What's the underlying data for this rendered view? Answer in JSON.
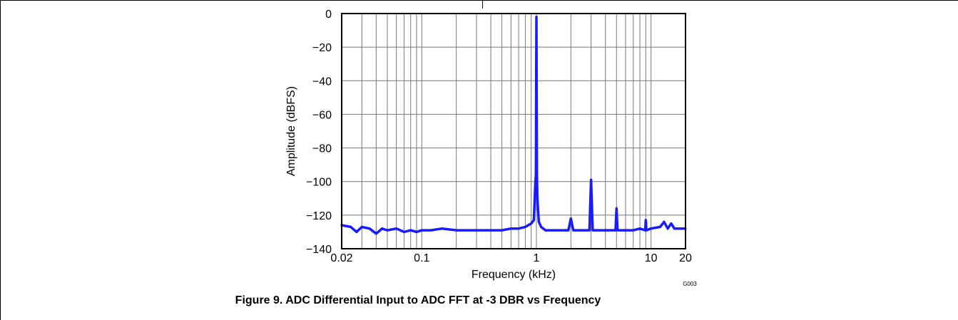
{
  "chart_data": {
    "type": "line",
    "title": "",
    "caption": "Figure 9. ADC Differential Input to ADC FFT at -3 DBR vs Frequency",
    "figure_code": "G003",
    "xlabel": "Frequency (kHz)",
    "ylabel": "Amplitude (dBFS)",
    "x_scale": "log",
    "xlim": [
      0.02,
      20
    ],
    "ylim": [
      -140,
      0
    ],
    "grid": true,
    "x_ticks": [
      {
        "value": 0.02,
        "label": "0.02"
      },
      {
        "value": 0.1,
        "label": "0.1"
      },
      {
        "value": 1,
        "label": "1"
      },
      {
        "value": 10,
        "label": "10"
      },
      {
        "value": 20,
        "label": "20"
      }
    ],
    "y_ticks": [
      {
        "value": 0,
        "label": "0"
      },
      {
        "value": -20,
        "label": "−20"
      },
      {
        "value": -40,
        "label": "−40"
      },
      {
        "value": -60,
        "label": "−60"
      },
      {
        "value": -80,
        "label": "−80"
      },
      {
        "value": -100,
        "label": "−100"
      },
      {
        "value": -120,
        "label": "−120"
      },
      {
        "value": -140,
        "label": "−140"
      }
    ],
    "line_color": "#1a1aff",
    "series": [
      {
        "name": "",
        "x": [
          0.02,
          0.024,
          0.027,
          0.03,
          0.035,
          0.04,
          0.045,
          0.05,
          0.06,
          0.07,
          0.08,
          0.09,
          0.1,
          0.12,
          0.15,
          0.2,
          0.3,
          0.4,
          0.5,
          0.6,
          0.7,
          0.8,
          0.9,
          0.95,
          0.98,
          0.99,
          1.0,
          1.01,
          1.02,
          1.05,
          1.1,
          1.2,
          1.5,
          1.9,
          2.0,
          2.1,
          2.5,
          2.9,
          3.0,
          3.1,
          4.0,
          4.9,
          5.0,
          5.1,
          6.0,
          7.0,
          8.0,
          8.9,
          9.0,
          9.1,
          10.0,
          12.0,
          13.0,
          14.0,
          15.0,
          16.0,
          18.0,
          20.0
        ],
        "values": [
          -126,
          -127,
          -130,
          -127,
          -128,
          -131,
          -128,
          -129,
          -128,
          -130,
          -129,
          -130,
          -129,
          -129,
          -128,
          -129,
          -129,
          -129,
          -129,
          -128,
          -128,
          -127,
          -125,
          -123,
          -100,
          -96,
          -2,
          -96,
          -110,
          -124,
          -127,
          -129,
          -129,
          -129,
          -122,
          -129,
          -129,
          -129,
          -99,
          -129,
          -129,
          -129,
          -116,
          -129,
          -129,
          -129,
          -128,
          -129,
          -123,
          -129,
          -128,
          -127,
          -124,
          -128,
          -125,
          -128,
          -128,
          -128
        ]
      }
    ]
  }
}
